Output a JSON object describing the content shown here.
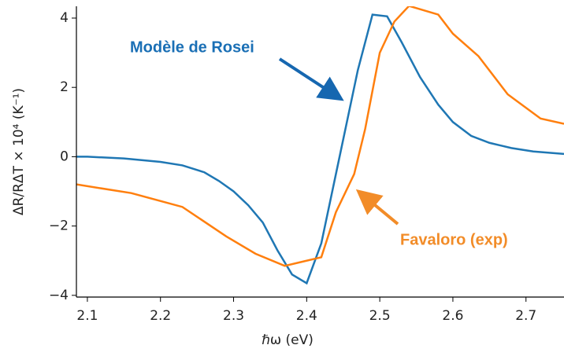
{
  "chart_data": {
    "type": "line",
    "xlabel": "ℏω (eV)",
    "ylabel": "ΔR/RΔT × 10⁴ (K⁻¹)",
    "xlim": [
      2.085,
      2.752
    ],
    "ylim": [
      -4.05,
      4.34
    ],
    "xticks": [
      2.1,
      2.2,
      2.3,
      2.4,
      2.5,
      2.6,
      2.7
    ],
    "yticks": [
      {
        "value": -4,
        "label": "−4"
      },
      {
        "value": -2,
        "label": "−2"
      },
      0,
      2,
      4
    ],
    "series": [
      {
        "name": "Modèle de Rosei",
        "color": "#1f77b4",
        "x": [
          2.085,
          2.1,
          2.15,
          2.2,
          2.23,
          2.26,
          2.28,
          2.3,
          2.32,
          2.34,
          2.36,
          2.38,
          2.4,
          2.42,
          2.44,
          2.47,
          2.49,
          2.51,
          2.53,
          2.555,
          2.58,
          2.6,
          2.625,
          2.65,
          2.68,
          2.71,
          2.752
        ],
        "values": [
          0,
          0,
          -0.05,
          -0.15,
          -0.25,
          -0.45,
          -0.7,
          -1.0,
          -1.4,
          -1.9,
          -2.7,
          -3.4,
          -3.65,
          -2.5,
          -0.5,
          2.5,
          4.1,
          4.05,
          3.3,
          2.3,
          1.5,
          1.0,
          0.6,
          0.4,
          0.25,
          0.15,
          0.08
        ]
      },
      {
        "name": "Favaloro (exp)",
        "color": "#ff7f0e",
        "x": [
          2.085,
          2.16,
          2.23,
          2.29,
          2.33,
          2.37,
          2.42,
          2.44,
          2.465,
          2.48,
          2.5,
          2.52,
          2.54,
          2.58,
          2.6,
          2.635,
          2.675,
          2.72,
          2.752
        ],
        "values": [
          -0.8,
          -1.05,
          -1.45,
          -2.3,
          -2.8,
          -3.15,
          -2.9,
          -1.6,
          -0.5,
          0.8,
          3.0,
          3.9,
          4.35,
          4.1,
          3.55,
          2.9,
          1.8,
          1.1,
          0.95
        ]
      }
    ]
  }
}
